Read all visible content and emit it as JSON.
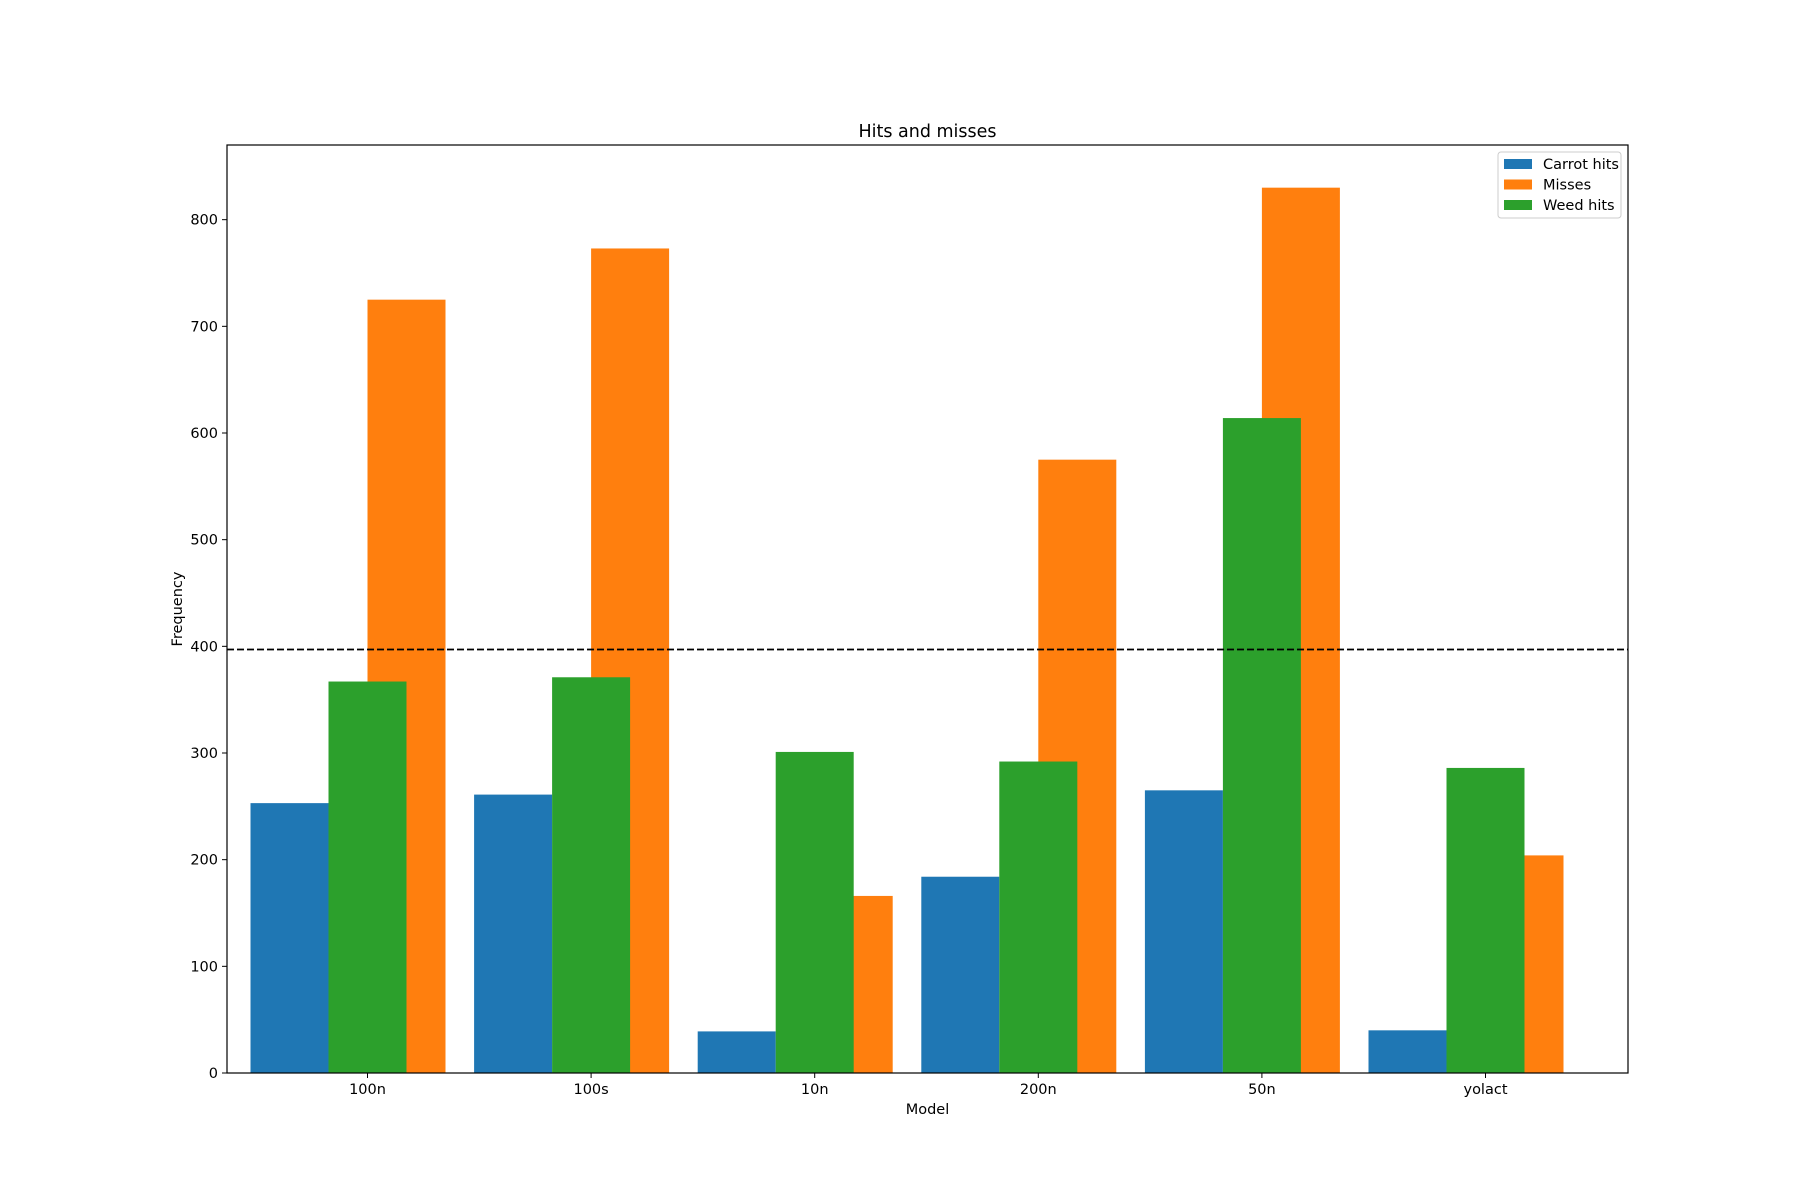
{
  "chart_data": {
    "type": "bar",
    "title": "Hits and misses",
    "xlabel": "Model",
    "ylabel": "Frequency",
    "categories": [
      "100n",
      "100s",
      "10n",
      "200n",
      "50n",
      "yolact"
    ],
    "series": [
      {
        "name": "Carrot hits",
        "color": "#1f77b4",
        "values": [
          253,
          261,
          39,
          184,
          265,
          40
        ]
      },
      {
        "name": "Misses",
        "color": "#ff7f0e",
        "values": [
          725,
          773,
          166,
          575,
          830,
          204
        ]
      },
      {
        "name": "Weed hits",
        "color": "#2ca02c",
        "values": [
          367,
          371,
          301,
          292,
          614,
          286
        ]
      }
    ],
    "reference_line": {
      "y": 397,
      "style": "dashed",
      "color": "#000000"
    },
    "ylim": [
      0,
      870
    ],
    "yticks": [
      0,
      100,
      200,
      300,
      400,
      500,
      600,
      700,
      800
    ],
    "legend_position": "top-right",
    "grid": false
  }
}
